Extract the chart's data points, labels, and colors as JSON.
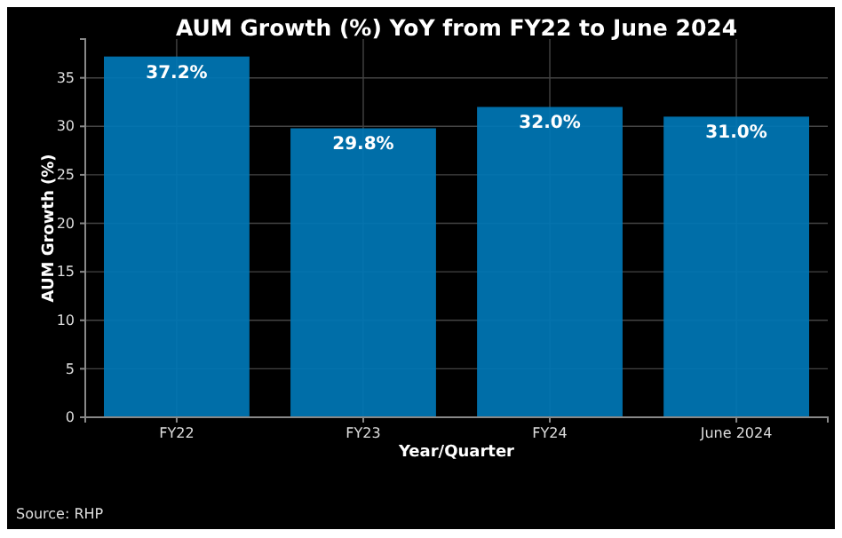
{
  "chart_data": {
    "type": "bar",
    "title": "AUM Growth (%) YoY from FY22 to June 2024",
    "xlabel": "Year/Quarter",
    "ylabel": "AUM Growth (%)",
    "categories": [
      "FY22",
      "FY23",
      "FY24",
      "June 2024"
    ],
    "values": [
      37.2,
      29.8,
      32.0,
      31.0
    ],
    "value_labels": [
      "37.2%",
      "29.8%",
      "32.0%",
      "31.0%"
    ],
    "color": "#0077b6",
    "ylim": [
      0,
      39
    ],
    "yticks": [
      0,
      5,
      10,
      15,
      20,
      25,
      30,
      35
    ],
    "grid": true,
    "annotations": [
      "Source: RHP"
    ]
  }
}
